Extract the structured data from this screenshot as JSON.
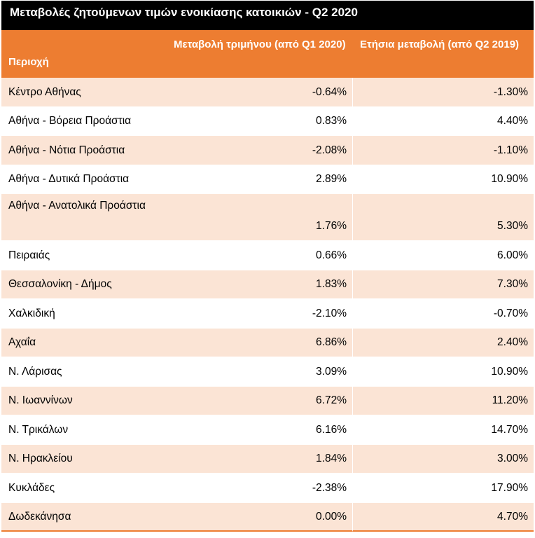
{
  "title": "Μεταβολές ζητούμενων τιμών ενοικίασης κατοικιών - Q2 2020",
  "headers": {
    "region": "Περιοχή",
    "quarterly": "Μεταβολή τριμήνου (από Q1 2020)",
    "annual": "Ετήσια μεταβολή (από Q2 2019)"
  },
  "rows": [
    {
      "region": "Κέντρο Αθήνας",
      "quarterly": "-0.64%",
      "annual": "-1.30%"
    },
    {
      "region": "Αθήνα - Βόρεια Προάστια",
      "quarterly": "0.83%",
      "annual": "4.40%"
    },
    {
      "region": "Αθήνα - Νότια Προάστια",
      "quarterly": "-2.08%",
      "annual": "-1.10%"
    },
    {
      "region": "Αθήνα - Δυτικά Προάστια",
      "quarterly": "2.89%",
      "annual": "10.90%"
    },
    {
      "region": "Αθήνα - Ανατολικά Προάστια",
      "quarterly": "1.76%",
      "annual": "5.30%"
    },
    {
      "region": "Πειραιάς",
      "quarterly": "0.66%",
      "annual": "6.00%"
    },
    {
      "region": "Θεσσαλονίκη - Δήμος",
      "quarterly": "1.83%",
      "annual": "7.30%"
    },
    {
      "region": "Χαλκιδική",
      "quarterly": "-2.10%",
      "annual": "-0.70%"
    },
    {
      "region": "Αχαΐα",
      "quarterly": "6.86%",
      "annual": "2.40%"
    },
    {
      "region": "Ν. Λάρισας",
      "quarterly": "3.09%",
      "annual": "10.90%"
    },
    {
      "region": "Ν. Ιωαννίνων",
      "quarterly": "6.72%",
      "annual": "11.20%"
    },
    {
      "region": "Ν. Τρικάλων",
      "quarterly": "6.16%",
      "annual": "14.70%"
    },
    {
      "region": "Ν. Ηρακλείου",
      "quarterly": "1.84%",
      "annual": "3.00%"
    },
    {
      "region": "Κυκλάδες",
      "quarterly": "-2.38%",
      "annual": "17.90%"
    },
    {
      "region": "Δωδεκάνησα",
      "quarterly": "0.00%",
      "annual": "4.70%"
    }
  ],
  "colors": {
    "title_bg": "#000000",
    "header_bg": "#ed7d31",
    "band": "#fbe4d5"
  }
}
